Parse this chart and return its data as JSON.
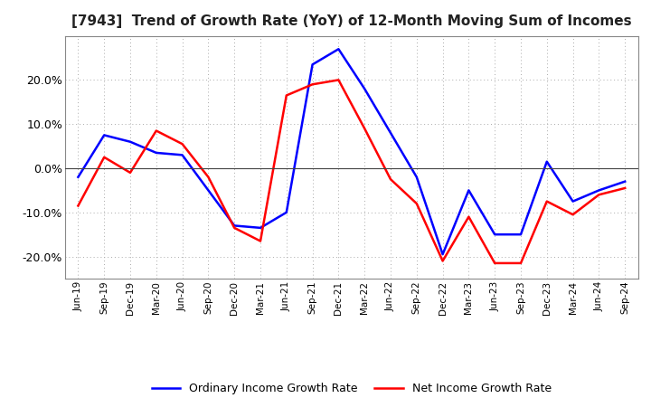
{
  "title": "[7943]  Trend of Growth Rate (YoY) of 12-Month Moving Sum of Incomes",
  "labels": [
    "Jun-19",
    "Sep-19",
    "Dec-19",
    "Mar-20",
    "Jun-20",
    "Sep-20",
    "Dec-20",
    "Mar-21",
    "Jun-21",
    "Sep-21",
    "Dec-21",
    "Mar-22",
    "Jun-22",
    "Sep-22",
    "Dec-22",
    "Mar-23",
    "Jun-23",
    "Sep-23",
    "Dec-23",
    "Mar-24",
    "Jun-24",
    "Sep-24"
  ],
  "ordinary_income": [
    -2.0,
    7.5,
    6.0,
    3.5,
    3.0,
    -5.0,
    -13.0,
    -13.5,
    -10.0,
    23.5,
    27.0,
    18.0,
    8.0,
    -2.0,
    -19.5,
    -5.0,
    -15.0,
    -15.0,
    1.5,
    -7.5,
    -5.0,
    -3.0
  ],
  "net_income": [
    -8.5,
    2.5,
    -1.0,
    8.5,
    5.5,
    -2.0,
    -13.5,
    -16.5,
    16.5,
    19.0,
    20.0,
    9.0,
    -2.5,
    -8.0,
    -21.0,
    -11.0,
    -21.5,
    -21.5,
    -7.5,
    -10.5,
    -6.0,
    -4.5
  ],
  "ordinary_color": "#0000FF",
  "net_color": "#FF0000",
  "ylim": [
    -25,
    30
  ],
  "yticks": [
    -20.0,
    -10.0,
    0.0,
    10.0,
    20.0
  ],
  "background_color": "#FFFFFF",
  "grid_color": "#AAAAAA",
  "title_fontsize": 11,
  "legend_ordinary": "Ordinary Income Growth Rate",
  "legend_net": "Net Income Growth Rate"
}
